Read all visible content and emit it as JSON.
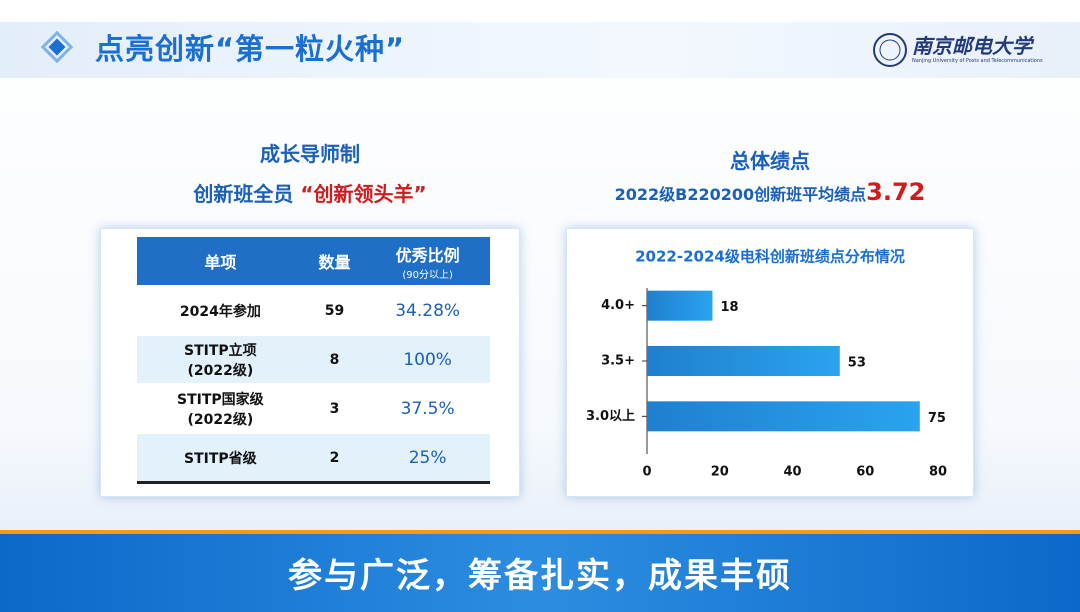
{
  "header": {
    "title": "点亮创新“第一粒火种”",
    "logo_name": "南京邮电大学",
    "logo_subtitle": "Nanjing University of Posts and Telecommunications"
  },
  "left": {
    "heading": "成长导师制",
    "subheading": "创新班全员",
    "highlight": "“创新领头羊”",
    "table": {
      "columns": [
        [
          "单项"
        ],
        [
          "数量"
        ],
        [
          "优秀比例",
          "(90分以上)"
        ]
      ],
      "rows": [
        [
          [
            "2024年参加"
          ],
          [
            "59"
          ],
          [
            "34.28%"
          ]
        ],
        [
          [
            "STITP立项",
            "(2022级)"
          ],
          [
            "8"
          ],
          [
            "100%"
          ]
        ],
        [
          [
            "STITP国家级",
            "(2022级)"
          ],
          [
            "3"
          ],
          [
            "37.5%"
          ]
        ],
        [
          [
            "STITP省级"
          ],
          [
            "2"
          ],
          [
            "25%"
          ]
        ]
      ]
    }
  },
  "right": {
    "heading": "总体绩点",
    "subheading": "2022级B220200创新班平均绩点",
    "gpa": "3.72"
  },
  "chart_data": {
    "type": "bar",
    "orientation": "horizontal",
    "title": "2022-2024级电科创新班绩点分布情况",
    "categories": [
      "4.0+",
      "3.5+",
      "3.0以上"
    ],
    "values": [
      18,
      53,
      75
    ],
    "color": "#1f7fd0",
    "xlim": [
      0,
      80
    ],
    "xticks": [
      0,
      20,
      40,
      60,
      80
    ]
  },
  "footer": {
    "banner": "参与广泛，筹备扎实，成果丰硕"
  }
}
